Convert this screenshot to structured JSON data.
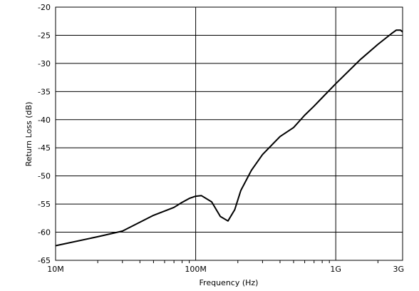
{
  "chart_data": {
    "type": "line",
    "title": "",
    "xlabel": "Frequency (Hz)",
    "ylabel": "Return Loss (dB)",
    "x_scale": "log",
    "xlim": [
      10000000,
      3000000000
    ],
    "ylim": [
      -65,
      -20
    ],
    "x_ticks": [
      {
        "value": 10000000,
        "label": "10M"
      },
      {
        "value": 100000000,
        "label": "100M"
      },
      {
        "value": 1000000000,
        "label": "1G"
      },
      {
        "value": 3000000000,
        "label": "3G"
      }
    ],
    "y_ticks": [
      {
        "value": -20,
        "label": "-20"
      },
      {
        "value": -25,
        "label": "-25"
      },
      {
        "value": -30,
        "label": "-30"
      },
      {
        "value": -35,
        "label": "-35"
      },
      {
        "value": -40,
        "label": "-40"
      },
      {
        "value": -45,
        "label": "-45"
      },
      {
        "value": -50,
        "label": "-50"
      },
      {
        "value": -55,
        "label": "-55"
      },
      {
        "value": -60,
        "label": "-60"
      },
      {
        "value": -65,
        "label": "-65"
      }
    ],
    "grid": true,
    "legend": "none",
    "line_color": "#000000",
    "series": [
      {
        "x": [
          10000000,
          20000000,
          30000000,
          50000000,
          70000000,
          80000000,
          90000000,
          100000000,
          110000000,
          130000000,
          150000000,
          170000000,
          190000000,
          210000000,
          250000000,
          300000000,
          400000000,
          500000000,
          600000000,
          700000000,
          800000000,
          1000000000,
          1500000000,
          2000000000,
          2500000000,
          2700000000,
          2900000000,
          3000000000
        ],
        "y": [
          -62.4,
          -60.8,
          -59.8,
          -57,
          -55.6,
          -54.7,
          -54,
          -53.6,
          -53.5,
          -54.6,
          -57.2,
          -58,
          -56,
          -52.6,
          -49,
          -46.2,
          -43,
          -41.4,
          -39.2,
          -37.6,
          -36.1,
          -33.6,
          -29.3,
          -26.6,
          -24.7,
          -24.1,
          -24.1,
          -24.4
        ]
      }
    ]
  }
}
